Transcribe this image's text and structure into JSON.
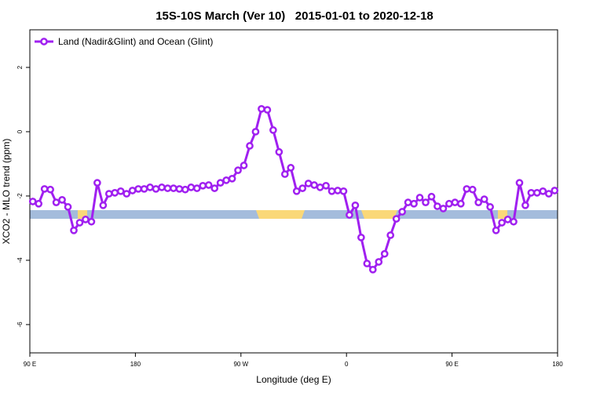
{
  "chart_data": {
    "type": "line",
    "title": "15S-10S March (Ver 10)   2015-01-01 to 2020-12-18",
    "xlabel": "Longitude (deg E)",
    "ylabel": "XCO2 - MLO trend (ppm)",
    "x": [
      92.5,
      97.5,
      102.5,
      107.5,
      112.5,
      117.5,
      122.5,
      127.5,
      132.5,
      137.5,
      142.5,
      147.5,
      152.5,
      157.5,
      162.5,
      167.5,
      172.5,
      177.5,
      182.5,
      187.5,
      192.5,
      197.5,
      202.5,
      207.5,
      212.5,
      217.5,
      222.5,
      227.5,
      232.5,
      237.5,
      242.5,
      247.5,
      252.5,
      257.5,
      262.5,
      267.5,
      272.5,
      277.5,
      282.5,
      287.5,
      292.5,
      297.5,
      302.5,
      307.5,
      312.5,
      317.5,
      322.5,
      327.5,
      332.5,
      337.5,
      342.5,
      347.5,
      352.5,
      357.5,
      362.5,
      367.5,
      372.5,
      377.5,
      382.5,
      387.5,
      392.5,
      397.5,
      402.5,
      407.5,
      412.5,
      417.5,
      422.5,
      427.5,
      432.5,
      437.5,
      442.5,
      447.5,
      452.5,
      457.5,
      462.5,
      467.5,
      472.5,
      477.5,
      482.5,
      487.5,
      492.5,
      497.5,
      502.5,
      507.5,
      512.5,
      517.5,
      522.5,
      527.5,
      532.5,
      537.5
    ],
    "series": [
      {
        "name": "Land (Nadir&Glint) and Ocean (Glint)",
        "color": "#a020f0",
        "values": [
          -2.17,
          -2.24,
          -1.78,
          -1.8,
          -2.2,
          -2.12,
          -2.34,
          -3.07,
          -2.83,
          -2.73,
          -2.8,
          -1.59,
          -2.29,
          -1.93,
          -1.9,
          -1.85,
          -1.93,
          -1.83,
          -1.78,
          -1.78,
          -1.73,
          -1.78,
          -1.73,
          -1.76,
          -1.76,
          -1.78,
          -1.8,
          -1.73,
          -1.76,
          -1.68,
          -1.66,
          -1.76,
          -1.59,
          -1.51,
          -1.46,
          -1.2,
          -1.05,
          -0.44,
          0,
          0.71,
          0.68,
          0.05,
          -0.63,
          -1.32,
          -1.12,
          -1.85,
          -1.76,
          -1.61,
          -1.66,
          -1.73,
          -1.68,
          -1.85,
          -1.83,
          -1.85,
          -2.59,
          -2.29,
          -3.29,
          -4.1,
          -4.29,
          -4.05,
          -3.8,
          -3.22,
          -2.71,
          -2.49,
          -2.2,
          -2.24,
          -2.05,
          -2.2,
          -2.02,
          -2.32,
          -2.39,
          -2.24,
          -2.2,
          -2.24,
          -1.78,
          -1.8,
          -2.2,
          -2.1,
          -2.34,
          -3.07,
          -2.83,
          -2.73,
          -2.8,
          -1.59,
          -2.29,
          -1.9,
          -1.9,
          -1.85,
          -1.93,
          -1.83
        ]
      }
    ],
    "xlim": [
      90,
      540
    ],
    "xticks": [
      {
        "value": 90,
        "label": "90 E"
      },
      180,
      {
        "value": 270,
        "label": "90 W"
      },
      {
        "value": 360,
        "label": "0"
      },
      {
        "value": 450,
        "label": "90 E"
      },
      {
        "value": 540,
        "label": "180"
      }
    ],
    "ylim": [
      -6.88,
      3.17
    ],
    "yticks": [
      2,
      0,
      -2,
      -4,
      -6
    ],
    "legend": "top-left"
  }
}
